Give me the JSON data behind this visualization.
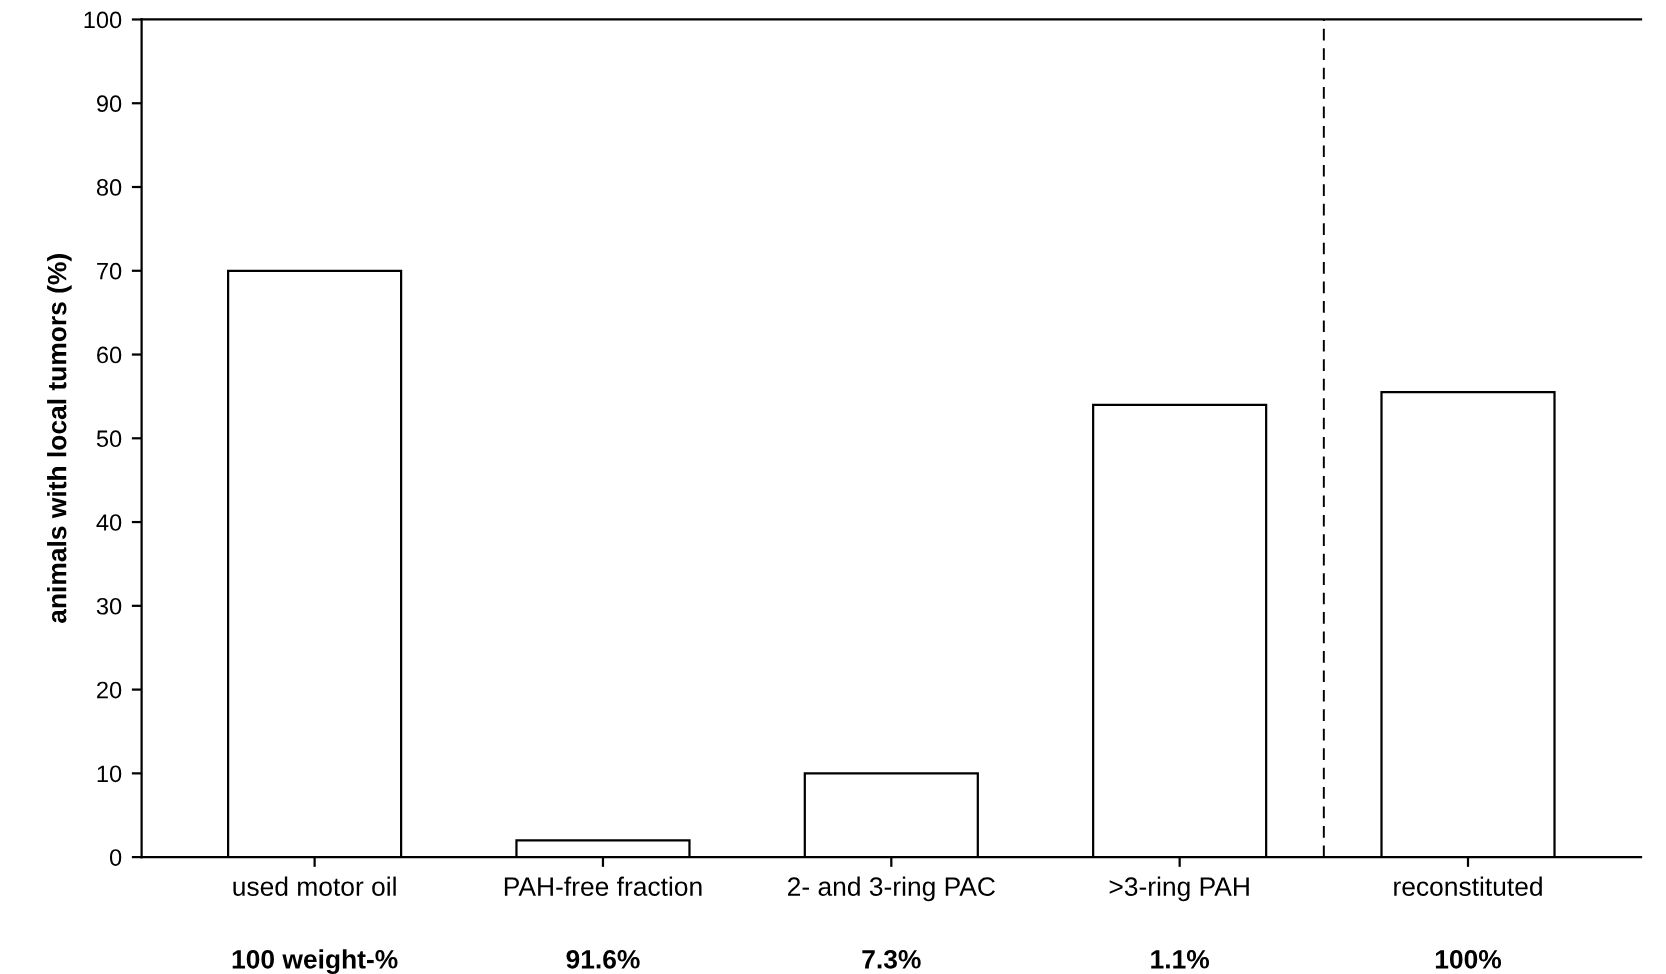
{
  "chart_data": {
    "type": "bar",
    "ylabel": "animals with local tumors (%)",
    "categories": [
      "used motor oil",
      "PAH-free fraction",
      "2- and 3-ring PAC",
      ">3-ring PAH",
      "reconstituted"
    ],
    "values": [
      70,
      2,
      10,
      54,
      55.5
    ],
    "color": "#ffffff",
    "ylim": [
      0,
      100
    ],
    "yticks": [
      0,
      10,
      20,
      30,
      40,
      50,
      60,
      70,
      80,
      90,
      100
    ],
    "annotations": [
      "100 weight-%",
      "91.6%",
      "7.3%",
      "1.1%",
      "100%"
    ]
  }
}
